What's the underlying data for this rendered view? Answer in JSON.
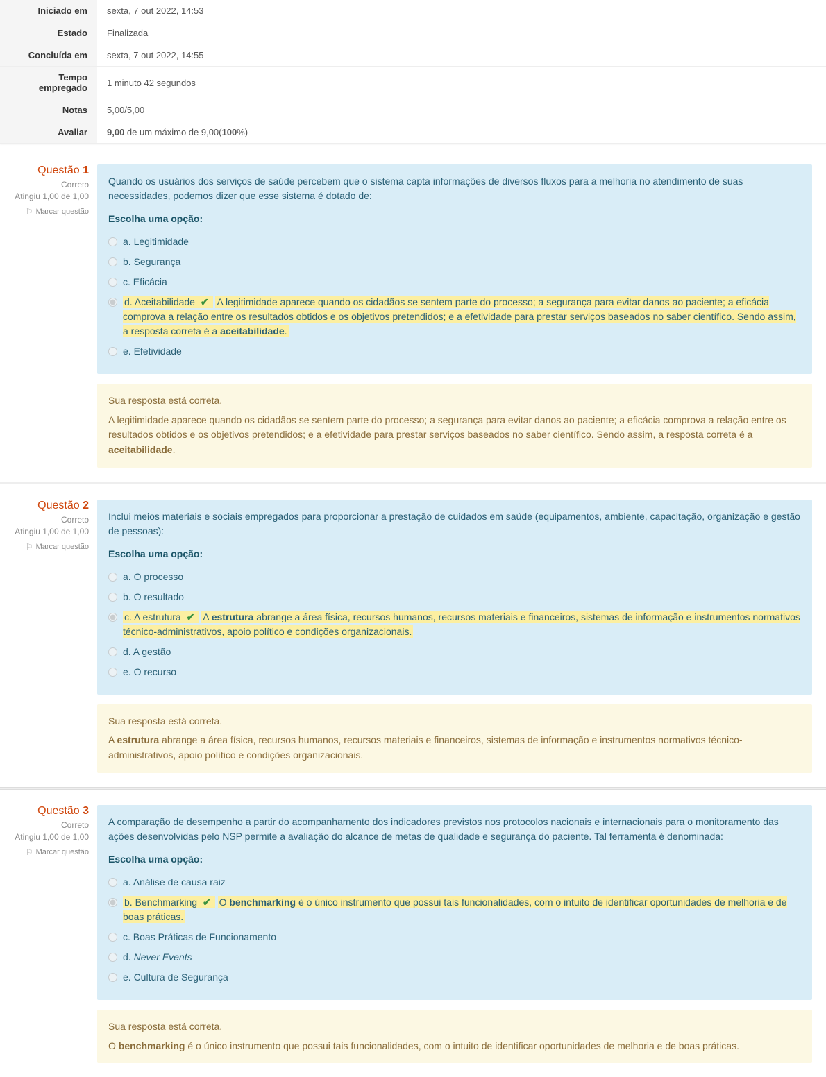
{
  "summary": {
    "rows": [
      {
        "label": "Iniciado em",
        "value": "sexta, 7 out 2022, 14:53"
      },
      {
        "label": "Estado",
        "value": "Finalizada"
      },
      {
        "label": "Concluída em",
        "value": "sexta, 7 out 2022, 14:55"
      },
      {
        "label": "Tempo empregado",
        "value": "1 minuto 42 segundos"
      },
      {
        "label": "Notas",
        "value": "5,00/5,00"
      },
      {
        "label": "Avaliar",
        "value_html": "<b>9,00</b> de um máximo de 9,00(<b>100</b>%)"
      }
    ]
  },
  "strings": {
    "questao": "Questão",
    "correto": "Correto",
    "atingiu": "Atingiu 1,00 de 1,00",
    "marcar": "Marcar questão",
    "escolha": "Escolha uma opção:",
    "sua_resposta": "Sua resposta está correta."
  },
  "questions": [
    {
      "number": "1",
      "text": "Quando os usuários dos serviços de saúde percebem que o sistema capta informações de diversos fluxos  para a melhoria  no atendimento  de suas necessidades,  podemos dizer  que esse sistema é dotado de:",
      "options": [
        {
          "letter": "a.",
          "label": "Legitimidade"
        },
        {
          "letter": "b.",
          "label": "Segurança"
        },
        {
          "letter": "c.",
          "label": "Eficácia"
        },
        {
          "letter": "d.",
          "label": "Aceitabilidade",
          "correct": true,
          "explain_html": "A legitimidade aparece quando os cidadãos se sentem parte do processo; a segurança para evitar danos ao paciente; a eficácia comprova a relação entre os resultados obtidos e os objetivos pretendidos; e a efetividade para prestar serviços baseados no saber científico. Sendo assim, a resposta correta é a <b>aceitabilidade</b>."
        },
        {
          "letter": "e.",
          "label": "Efetividade"
        }
      ],
      "feedback_html": "A legitimidade aparece quando os cidadãos se sentem parte do processo; a segurança para evitar danos ao paciente; a eficácia comprova a relação entre os resultados obtidos e os objetivos pretendidos; e a efetividade para prestar serviços baseados no saber científico. Sendo assim, a resposta correta é a <b>aceitabilidade</b>."
    },
    {
      "number": "2",
      "text": "Inclui meios materiais  e sociais  empregados para proporcionar a prestação de cuidados em saúde (equipamentos, ambiente, capacitação, organização e gestão de pessoas):",
      "options": [
        {
          "letter": "a.",
          "label": "O processo"
        },
        {
          "letter": "b.",
          "label": "O resultado"
        },
        {
          "letter": "c.",
          "label": "A estrutura",
          "correct": true,
          "explain_html": "A <b>estrutura</b> abrange a área física, recursos humanos, recursos materiais e financeiros, sistemas de informação e instrumentos normativos técnico-administrativos, apoio político e condições organizacionais."
        },
        {
          "letter": "d.",
          "label": "A gestão"
        },
        {
          "letter": "e.",
          "label": "O recurso"
        }
      ],
      "feedback_html": "A <b>estrutura</b> abrange a área física, recursos humanos, recursos materiais e financeiros, sistemas de informação e instrumentos normativos técnico-administrativos, apoio político e condições organizacionais."
    },
    {
      "number": "3",
      "text": "A comparação de desempenho a partir do acompanhamento dos indicadores previstos nos protocolos nacionais e internacionais para o monitoramento das ações desenvolvidas pelo NSP permite a avaliação do alcance de metas de qualidade e segurança do paciente. Tal ferramenta é denominada:",
      "options": [
        {
          "letter": "a.",
          "label": "Análise de causa raiz"
        },
        {
          "letter": "b.",
          "label": "Benchmarking",
          "correct": true,
          "explain_html": "O <b>benchmarking</b> é o único instrumento que possui tais funcionalidades, com o intuito de identificar oportunidades de melhoria e de boas práticas."
        },
        {
          "letter": "c.",
          "label": "Boas Práticas de Funcionamento"
        },
        {
          "letter": "d.",
          "label_html": "<em>Never Events</em>"
        },
        {
          "letter": "e.",
          "label": "Cultura de Segurança"
        }
      ],
      "feedback_html": "O <b>benchmarking</b> é o único instrumento que possui tais funcionalidades, com o intuito de identificar oportunidades de melhoria e de boas práticas."
    }
  ]
}
